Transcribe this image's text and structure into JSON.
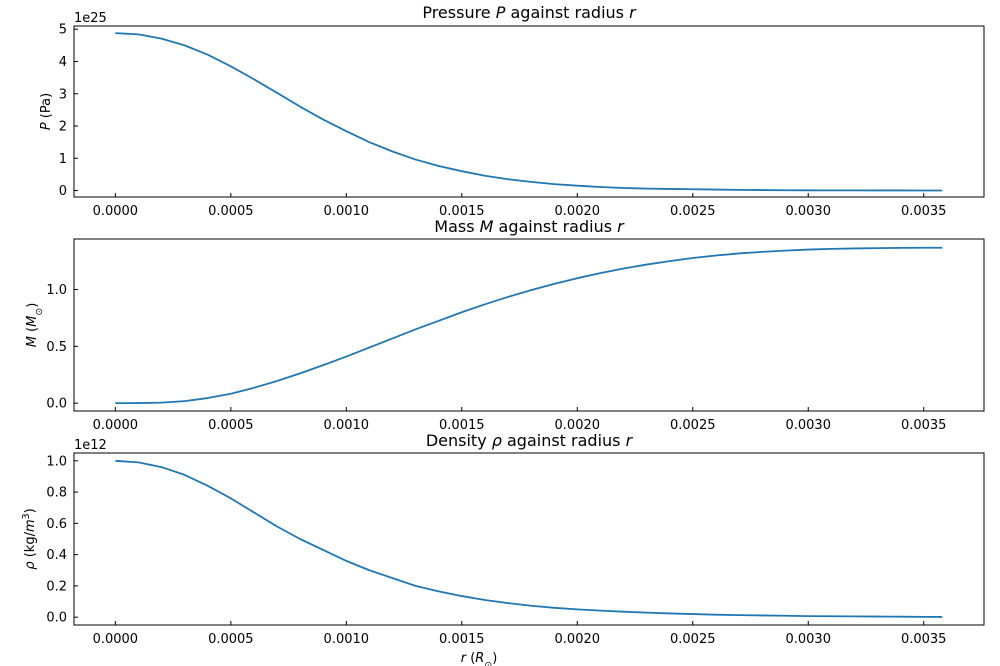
{
  "chart_data": [
    {
      "type": "line",
      "title": "Pressure P against radius r",
      "title_parts": [
        {
          "t": "Pressure "
        },
        {
          "t": "P",
          "i": true
        },
        {
          "t": " against radius "
        },
        {
          "t": "r",
          "i": true
        }
      ],
      "ylabel_parts": [
        {
          "t": "P",
          "i": true
        },
        {
          "t": " (Pa)"
        }
      ],
      "xlabel_parts": [],
      "offset_text": "1e25",
      "scale": 1e+25,
      "xlim": [
        -0.000179,
        0.003761
      ],
      "ylim": [
        -0.2,
        5.1
      ],
      "yticks": [
        0,
        1,
        2,
        3,
        4,
        5
      ],
      "ytick_labels": [
        "0",
        "1",
        "2",
        "3",
        "4",
        "5"
      ],
      "xticks": [
        0,
        0.0005,
        0.001,
        0.0015,
        0.002,
        0.0025,
        0.003,
        0.0035
      ],
      "xtick_labels": [
        "0.0000",
        "0.0005",
        "0.0010",
        "0.0015",
        "0.0020",
        "0.0025",
        "0.0030",
        "0.0035"
      ],
      "series": [
        {
          "color": "#1f77b4",
          "x": [
            0,
            0.0001,
            0.0002,
            0.0003,
            0.0004,
            0.0005,
            0.0006,
            0.0007,
            0.0008,
            0.0009,
            0.001,
            0.0011,
            0.0012,
            0.0013,
            0.0014,
            0.0015,
            0.0016,
            0.0017,
            0.0018,
            0.0019,
            0.002,
            0.0021,
            0.0022,
            0.0023,
            0.0024,
            0.0025,
            0.0026,
            0.0027,
            0.0028,
            0.0029,
            0.003,
            0.0031,
            0.0032,
            0.0033,
            0.0034,
            0.0035,
            0.00358
          ],
          "y": [
            4.88,
            4.84,
            4.71,
            4.5,
            4.21,
            3.85,
            3.45,
            3.03,
            2.6,
            2.2,
            1.84,
            1.5,
            1.21,
            0.96,
            0.76,
            0.6,
            0.46,
            0.35,
            0.27,
            0.2,
            0.15,
            0.11,
            0.08,
            0.06,
            0.05,
            0.04,
            0.03,
            0.02,
            0.015,
            0.01,
            0.008,
            0.006,
            0.005,
            0.004,
            0.003,
            0.002,
            0.0015
          ]
        }
      ]
    },
    {
      "type": "line",
      "title": "Mass M against radius r",
      "title_parts": [
        {
          "t": "Mass "
        },
        {
          "t": "M",
          "i": true
        },
        {
          "t": " against radius "
        },
        {
          "t": "r",
          "i": true
        }
      ],
      "ylabel_parts": [
        {
          "t": "M",
          "i": true
        },
        {
          "t": " ("
        },
        {
          "t": "M",
          "i": true
        },
        {
          "t": "⊙",
          "sub": true
        },
        {
          "t": ")"
        }
      ],
      "xlabel_parts": [],
      "offset_text": "",
      "scale": 1,
      "xlim": [
        -0.000179,
        0.003761
      ],
      "ylim": [
        -0.069,
        1.445
      ],
      "yticks": [
        0,
        0.5,
        1.0
      ],
      "ytick_labels": [
        "0.0",
        "0.5",
        "1.0"
      ],
      "xticks": [
        0,
        0.0005,
        0.001,
        0.0015,
        0.002,
        0.0025,
        0.003,
        0.0035
      ],
      "xtick_labels": [
        "0.0000",
        "0.0005",
        "0.0010",
        "0.0015",
        "0.0020",
        "0.0025",
        "0.0030",
        "0.0035"
      ],
      "series": [
        {
          "color": "#1f77b4",
          "x": [
            0,
            0.0001,
            0.0002,
            0.0003,
            0.0004,
            0.0005,
            0.0006,
            0.0007,
            0.0008,
            0.0009,
            0.001,
            0.0011,
            0.0012,
            0.0013,
            0.0014,
            0.0015,
            0.0016,
            0.0017,
            0.0018,
            0.0019,
            0.002,
            0.0021,
            0.0022,
            0.0023,
            0.0024,
            0.0025,
            0.0026,
            0.0027,
            0.0028,
            0.0029,
            0.003,
            0.0031,
            0.0032,
            0.0033,
            0.0034,
            0.0035,
            0.00358
          ],
          "y": [
            0,
            0.001,
            0.005,
            0.018,
            0.045,
            0.083,
            0.135,
            0.195,
            0.262,
            0.335,
            0.41,
            0.49,
            0.57,
            0.65,
            0.725,
            0.8,
            0.87,
            0.935,
            0.995,
            1.05,
            1.1,
            1.145,
            1.185,
            1.22,
            1.25,
            1.278,
            1.3,
            1.318,
            1.332,
            1.343,
            1.352,
            1.358,
            1.362,
            1.365,
            1.367,
            1.368,
            1.368
          ]
        }
      ]
    },
    {
      "type": "line",
      "title": "Density ρ against radius r",
      "title_parts": [
        {
          "t": "Density "
        },
        {
          "t": "ρ",
          "i": true
        },
        {
          "t": " against radius "
        },
        {
          "t": "r",
          "i": true
        }
      ],
      "ylabel_parts": [
        {
          "t": "ρ",
          "i": true
        },
        {
          "t": " (kg/"
        },
        {
          "t": "m",
          "i": true
        },
        {
          "t": "3",
          "sup": true
        },
        {
          "t": ")"
        }
      ],
      "xlabel_parts": [
        {
          "t": "r",
          "i": true
        },
        {
          "t": " ("
        },
        {
          "t": "R",
          "i": true
        },
        {
          "t": "⊙",
          "sub": true
        },
        {
          "t": ")"
        }
      ],
      "offset_text": "1e12",
      "scale": 1000000000000.0,
      "xlim": [
        -0.000179,
        0.003761
      ],
      "ylim": [
        -0.05,
        1.05
      ],
      "yticks": [
        0,
        0.2,
        0.4,
        0.6,
        0.8,
        1.0
      ],
      "ytick_labels": [
        "0.0",
        "0.2",
        "0.4",
        "0.6",
        "0.8",
        "1.0"
      ],
      "xticks": [
        0,
        0.0005,
        0.001,
        0.0015,
        0.002,
        0.0025,
        0.003,
        0.0035
      ],
      "xtick_labels": [
        "0.0000",
        "0.0005",
        "0.0010",
        "0.0015",
        "0.0020",
        "0.0025",
        "0.0030",
        "0.0035"
      ],
      "series": [
        {
          "color": "#1f77b4",
          "x": [
            0,
            0.0001,
            0.0002,
            0.0003,
            0.0004,
            0.0005,
            0.0006,
            0.0007,
            0.0008,
            0.0009,
            0.001,
            0.0011,
            0.0012,
            0.0013,
            0.0014,
            0.0015,
            0.0016,
            0.0017,
            0.0018,
            0.0019,
            0.002,
            0.0021,
            0.0022,
            0.0023,
            0.0024,
            0.0025,
            0.0026,
            0.0027,
            0.0028,
            0.0029,
            0.003,
            0.0031,
            0.0032,
            0.0033,
            0.0034,
            0.0035,
            0.00358
          ],
          "y": [
            1.0,
            0.99,
            0.96,
            0.91,
            0.84,
            0.76,
            0.67,
            0.58,
            0.5,
            0.43,
            0.36,
            0.3,
            0.25,
            0.2,
            0.165,
            0.135,
            0.11,
            0.09,
            0.073,
            0.06,
            0.05,
            0.042,
            0.035,
            0.029,
            0.024,
            0.02,
            0.016,
            0.013,
            0.011,
            0.009,
            0.007,
            0.006,
            0.005,
            0.004,
            0.003,
            0.002,
            0.0015
          ]
        }
      ]
    }
  ]
}
